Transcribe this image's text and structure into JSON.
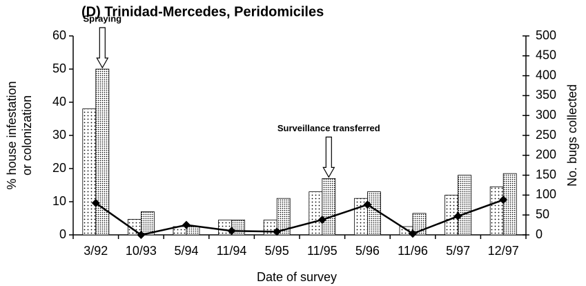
{
  "chart_data": {
    "type": "bar",
    "title": "(D) Trinidad-Mercedes, Peridomiciles",
    "xlabel": "Date of survey",
    "ylabel": [
      "% house infestation",
      "or colonization"
    ],
    "y2label": "No. bugs collected",
    "categories": [
      "3/92",
      "10/93",
      "5/94",
      "11/94",
      "5/95",
      "11/95",
      "5/96",
      "11/96",
      "5/97",
      "12/97"
    ],
    "series": [
      {
        "type": "bar",
        "color": "#000000",
        "values": [
          38,
          4.7,
          2.5,
          4.5,
          4.5,
          13,
          11,
          2.5,
          12,
          14.5
        ]
      },
      {
        "type": "bar",
        "color": "#000000",
        "values": [
          50,
          7,
          2.5,
          4.5,
          11,
          17,
          13,
          6.5,
          18,
          18.5
        ]
      },
      {
        "type": "line",
        "axis": "y2",
        "color": "#000000",
        "values": [
          80,
          0,
          25,
          10,
          8,
          38,
          76,
          3,
          47,
          88
        ]
      }
    ],
    "ylim": [
      0,
      60
    ],
    "yticks": [
      0,
      10,
      20,
      30,
      40,
      50,
      60
    ],
    "y2lim": [
      0,
      500
    ],
    "y2ticks": [
      0,
      50,
      100,
      150,
      200,
      250,
      300,
      350,
      400,
      450,
      500
    ],
    "grid": false,
    "annotations": [
      {
        "text": "Spraying",
        "category": 0
      },
      {
        "text": "Surveillance transferred",
        "category": 5
      }
    ]
  }
}
